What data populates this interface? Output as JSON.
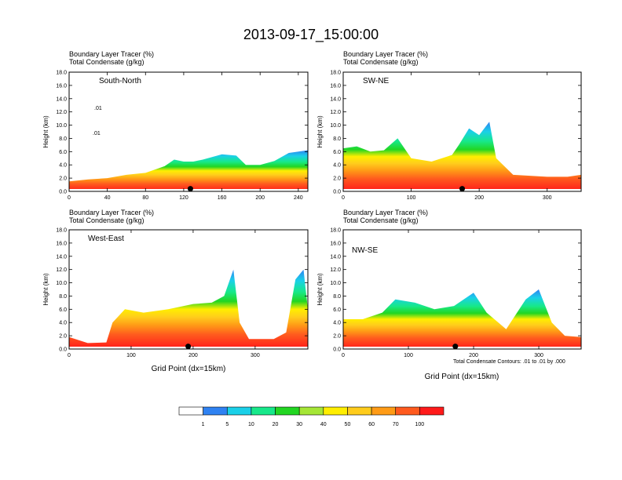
{
  "figure_title": "2013-09-17_15:00:00",
  "footnote": "Total Condensate Contours: .01 to .01 by .000",
  "colorbar": {
    "colors": [
      "#ffffff",
      "#2f82f2",
      "#1ad0e8",
      "#17e88a",
      "#22d622",
      "#a5e636",
      "#ffee00",
      "#ffcc1c",
      "#ff9b16",
      "#ff5a1e",
      "#ff1a1a"
    ],
    "labels": [
      "1",
      "5",
      "10",
      "20",
      "30",
      "40",
      "50",
      "60",
      "70",
      "100"
    ]
  },
  "chart_data": [
    {
      "type": "heatmap",
      "panel": "South-North",
      "title": "Boundary Layer Tracer (%)",
      "subtitle": "Total Condensate (g/kg)",
      "ylabel": "Height (km)",
      "xlabel": "",
      "xlim": [
        0,
        250
      ],
      "ylim": [
        0,
        18
      ],
      "xticks": [
        "0",
        "40",
        "80",
        "120",
        "160",
        "200",
        "240"
      ],
      "yticks": [
        "0.0",
        "2.0",
        "4.0",
        "6.0",
        "8.0",
        "10.0",
        "12.0",
        "14.0",
        "16.0",
        "18.0"
      ],
      "marker_x": 127,
      "contour_labels": [
        ".01",
        ".01"
      ],
      "profile": [
        [
          0,
          1.5
        ],
        [
          20,
          1.8
        ],
        [
          40,
          2.0
        ],
        [
          60,
          2.5
        ],
        [
          80,
          2.8
        ],
        [
          100,
          3.8
        ],
        [
          110,
          4.8
        ],
        [
          120,
          4.5
        ],
        [
          130,
          4.5
        ],
        [
          140,
          4.8
        ],
        [
          150,
          5.2
        ],
        [
          160,
          5.6
        ],
        [
          175,
          5.4
        ],
        [
          185,
          4.0
        ],
        [
          200,
          4.0
        ],
        [
          215,
          4.6
        ],
        [
          230,
          5.8
        ],
        [
          250,
          6.2
        ]
      ]
    },
    {
      "type": "heatmap",
      "panel": "SW-NE",
      "title": "Boundary Layer Tracer (%)",
      "subtitle": "Total Condensate (g/kg)",
      "ylabel": "Height (km)",
      "xlabel": "",
      "xlim": [
        0,
        350
      ],
      "ylim": [
        0,
        18
      ],
      "xticks": [
        "0",
        "100",
        "200",
        "300"
      ],
      "yticks": [
        "0.0",
        "2.0",
        "4.0",
        "6.0",
        "8.0",
        "10.0",
        "12.0",
        "14.0",
        "16.0",
        "18.0"
      ],
      "marker_x": 175,
      "contour_labels": [],
      "profile": [
        [
          0,
          6.5
        ],
        [
          20,
          6.8
        ],
        [
          40,
          6.0
        ],
        [
          60,
          6.2
        ],
        [
          80,
          8.0
        ],
        [
          100,
          5.0
        ],
        [
          130,
          4.5
        ],
        [
          160,
          5.5
        ],
        [
          170,
          7.0
        ],
        [
          185,
          9.5
        ],
        [
          200,
          8.5
        ],
        [
          215,
          10.5
        ],
        [
          225,
          5.0
        ],
        [
          250,
          2.5
        ],
        [
          300,
          2.2
        ],
        [
          330,
          2.2
        ],
        [
          350,
          2.5
        ]
      ]
    },
    {
      "type": "heatmap",
      "panel": "West-East",
      "title": "Boundary Layer Tracer (%)",
      "subtitle": "Total Condensate (g/kg)",
      "ylabel": "Height (km)",
      "xlabel": "Grid Point (dx=15km)",
      "xlim": [
        0,
        385
      ],
      "ylim": [
        0,
        18
      ],
      "xticks": [
        "0",
        "100",
        "200",
        "300"
      ],
      "yticks": [
        "0.0",
        "2.0",
        "4.0",
        "6.0",
        "8.0",
        "10.0",
        "12.0",
        "14.0",
        "16.0",
        "18.0"
      ],
      "marker_x": 192,
      "contour_labels": [],
      "profile": [
        [
          0,
          1.8
        ],
        [
          30,
          0.9
        ],
        [
          60,
          1.0
        ],
        [
          70,
          4.0
        ],
        [
          90,
          6.0
        ],
        [
          120,
          5.5
        ],
        [
          160,
          6.0
        ],
        [
          200,
          6.8
        ],
        [
          230,
          7.0
        ],
        [
          250,
          8.0
        ],
        [
          265,
          12.0
        ],
        [
          275,
          4.0
        ],
        [
          290,
          1.5
        ],
        [
          330,
          1.5
        ],
        [
          350,
          2.5
        ],
        [
          365,
          10.5
        ],
        [
          378,
          12.0
        ],
        [
          385,
          6.0
        ]
      ]
    },
    {
      "type": "heatmap",
      "panel": "NW-SE",
      "title": "Boundary Layer Tracer (%)",
      "subtitle": "Total Condensate (g/kg)",
      "ylabel": "Height (km)",
      "xlabel": "Grid Point (dx=15km)",
      "xlim": [
        0,
        365
      ],
      "ylim": [
        0,
        18
      ],
      "xticks": [
        "0",
        "100",
        "200",
        "300"
      ],
      "yticks": [
        "0.0",
        "2.0",
        "4.0",
        "6.0",
        "8.0",
        "10.0",
        "12.0",
        "14.0",
        "16.0",
        "18.0"
      ],
      "marker_x": 172,
      "contour_labels": [],
      "profile": [
        [
          0,
          4.5
        ],
        [
          30,
          4.5
        ],
        [
          60,
          5.5
        ],
        [
          80,
          7.5
        ],
        [
          110,
          7.0
        ],
        [
          140,
          6.0
        ],
        [
          170,
          6.5
        ],
        [
          200,
          8.5
        ],
        [
          220,
          5.5
        ],
        [
          250,
          3.0
        ],
        [
          280,
          7.5
        ],
        [
          300,
          9.0
        ],
        [
          320,
          4.0
        ],
        [
          340,
          2.0
        ],
        [
          365,
          1.8
        ]
      ]
    }
  ]
}
